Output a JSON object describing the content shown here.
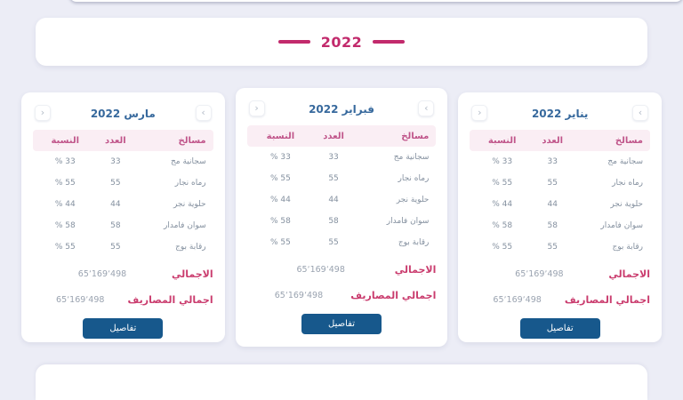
{
  "year_banner": {
    "year": "2022"
  },
  "nav": {
    "next": "›",
    "prev": "‹"
  },
  "table": {
    "headers": {
      "name": "مسالخ",
      "count": "العدد",
      "percent": "النسبة"
    }
  },
  "cards": [
    {
      "title": "يناير 2022",
      "rows": [
        {
          "label": "سجانية مج",
          "count": "33",
          "percent": "33 %"
        },
        {
          "label": "رماه نجار",
          "count": "55",
          "percent": "55 %"
        },
        {
          "label": "حلوية نجر",
          "count": "44",
          "percent": "44 %"
        },
        {
          "label": "سوان فامدار",
          "count": "58",
          "percent": "58 %"
        },
        {
          "label": "رقابة بوج",
          "count": "55",
          "percent": "55 %"
        }
      ],
      "total_label": "الاجمالي",
      "total_value": "65٬169٬498",
      "expenses_label": "اجمالي المصاريف",
      "expenses_value": "65٬169٬498",
      "details_label": "تفاصيل"
    },
    {
      "title": "فبراير 2022",
      "rows": [
        {
          "label": "سجانية مج",
          "count": "33",
          "percent": "33 %"
        },
        {
          "label": "رماه نجار",
          "count": "55",
          "percent": "55 %"
        },
        {
          "label": "حلوية نجر",
          "count": "44",
          "percent": "44 %"
        },
        {
          "label": "سوان فامدار",
          "count": "58",
          "percent": "58 %"
        },
        {
          "label": "رقابة بوج",
          "count": "55",
          "percent": "55 %"
        }
      ],
      "total_label": "الاجمالي",
      "total_value": "65٬169٬498",
      "expenses_label": "اجمالي المصاريف",
      "expenses_value": "65٬169٬498",
      "details_label": "تفاصيل"
    },
    {
      "title": "مارس 2022",
      "rows": [
        {
          "label": "سجانية مج",
          "count": "33",
          "percent": "33 %"
        },
        {
          "label": "رماه نجار",
          "count": "55",
          "percent": "55 %"
        },
        {
          "label": "حلوية نجر",
          "count": "44",
          "percent": "44 %"
        },
        {
          "label": "سوان فامدار",
          "count": "58",
          "percent": "58 %"
        },
        {
          "label": "رقابة بوج",
          "count": "55",
          "percent": "55 %"
        }
      ],
      "total_label": "الاجمالي",
      "total_value": "65٬169٬498",
      "expenses_label": "اجمالي المصاريف",
      "expenses_value": "65٬169٬498",
      "details_label": "تفاصيل"
    }
  ],
  "colors": {
    "accent_pink": "#c22a6c",
    "title_blue": "#37699d",
    "button_blue": "#17588c",
    "table_header_bg": "#faeef4",
    "page_bg": "#ecedf6"
  }
}
